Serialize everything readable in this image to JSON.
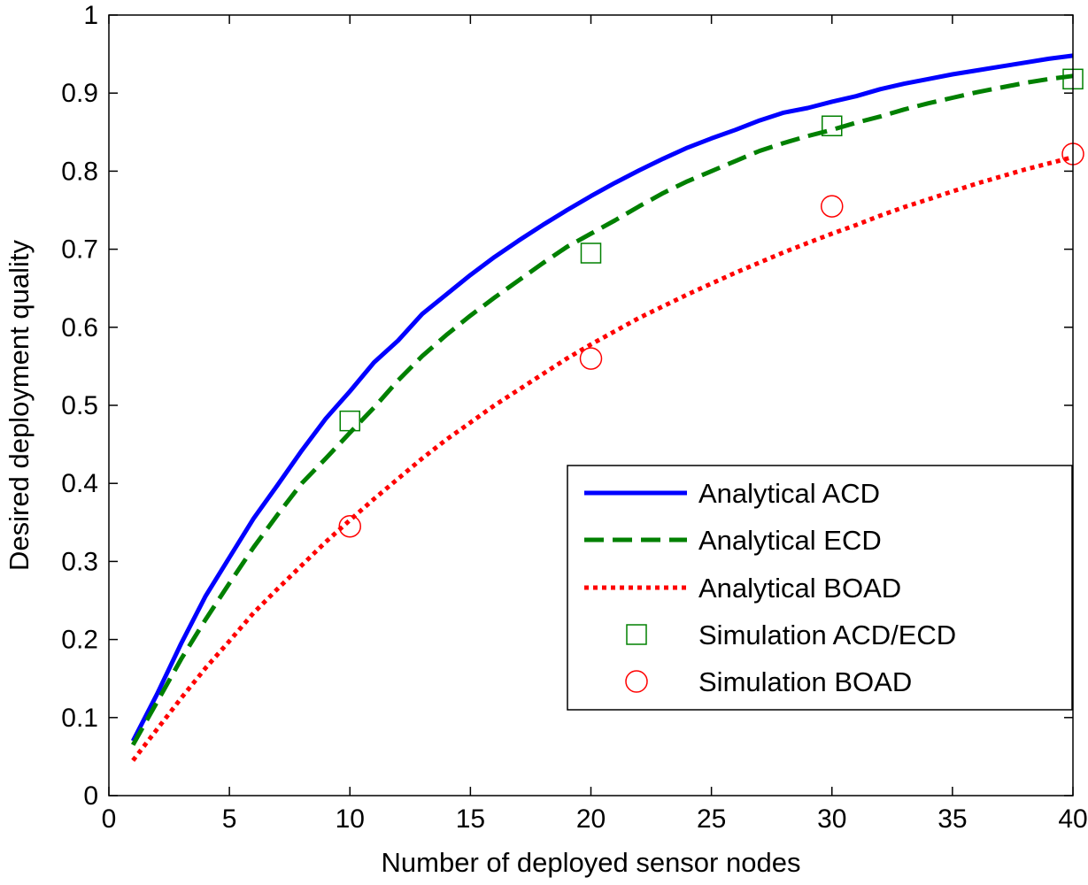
{
  "chart_data": {
    "type": "line",
    "xlabel": "Number of deployed sensor nodes",
    "ylabel": "Desired deployment quality",
    "xlim": [
      0,
      40
    ],
    "ylim": [
      0,
      1
    ],
    "xticks": [
      0,
      5,
      10,
      15,
      20,
      25,
      30,
      35,
      40
    ],
    "yticks": [
      0,
      0.1,
      0.2,
      0.3,
      0.4,
      0.5,
      0.6,
      0.7,
      0.8,
      0.9,
      1
    ],
    "grid": false,
    "legend_position": "lower-right",
    "series": [
      {
        "name": "Analytical ACD",
        "kind": "line",
        "style": "solid",
        "color": "#0000ff",
        "x": [
          1,
          2,
          3,
          4,
          5,
          6,
          7,
          8,
          9,
          10,
          11,
          12,
          13,
          14,
          15,
          16,
          17,
          18,
          19,
          20,
          21,
          22,
          23,
          24,
          25,
          26,
          27,
          28,
          29,
          30,
          31,
          32,
          33,
          34,
          35,
          36,
          37,
          38,
          39,
          40
        ],
        "y": [
          0.07,
          0.13,
          0.195,
          0.255,
          0.305,
          0.355,
          0.398,
          0.442,
          0.483,
          0.518,
          0.555,
          0.583,
          0.617,
          0.642,
          0.667,
          0.69,
          0.711,
          0.731,
          0.75,
          0.768,
          0.785,
          0.801,
          0.816,
          0.83,
          0.842,
          0.853,
          0.865,
          0.875,
          0.881,
          0.889,
          0.896,
          0.905,
          0.912,
          0.918,
          0.924,
          0.929,
          0.934,
          0.939,
          0.944,
          0.948
        ]
      },
      {
        "name": "Analytical ECD",
        "kind": "line",
        "style": "dashed",
        "color": "#008000",
        "x": [
          1,
          2,
          3,
          4,
          5,
          6,
          7,
          8,
          9,
          10,
          11,
          12,
          13,
          14,
          15,
          16,
          17,
          18,
          19,
          20,
          21,
          22,
          23,
          24,
          25,
          26,
          27,
          28,
          29,
          30,
          31,
          32,
          33,
          34,
          35,
          36,
          37,
          38,
          39,
          40
        ],
        "y": [
          0.065,
          0.12,
          0.175,
          0.225,
          0.272,
          0.318,
          0.36,
          0.4,
          0.432,
          0.465,
          0.497,
          0.532,
          0.563,
          0.59,
          0.615,
          0.638,
          0.66,
          0.682,
          0.703,
          0.72,
          0.737,
          0.755,
          0.772,
          0.787,
          0.8,
          0.813,
          0.826,
          0.836,
          0.845,
          0.853,
          0.862,
          0.87,
          0.879,
          0.887,
          0.894,
          0.901,
          0.907,
          0.913,
          0.918,
          0.922
        ]
      },
      {
        "name": "Analytical BOAD",
        "kind": "line",
        "style": "dotted",
        "color": "#ff0000",
        "x": [
          1,
          2,
          3,
          4,
          5,
          6,
          7,
          8,
          9,
          10,
          11,
          12,
          13,
          14,
          15,
          16,
          17,
          18,
          19,
          20,
          21,
          22,
          23,
          24,
          25,
          26,
          27,
          28,
          29,
          30,
          31,
          32,
          33,
          34,
          35,
          36,
          37,
          38,
          39,
          40
        ],
        "y": [
          0.045,
          0.085,
          0.125,
          0.163,
          0.198,
          0.234,
          0.265,
          0.295,
          0.325,
          0.353,
          0.38,
          0.406,
          0.432,
          0.456,
          0.478,
          0.5,
          0.52,
          0.54,
          0.56,
          0.578,
          0.595,
          0.612,
          0.627,
          0.642,
          0.656,
          0.67,
          0.683,
          0.696,
          0.708,
          0.72,
          0.731,
          0.743,
          0.754,
          0.764,
          0.774,
          0.784,
          0.793,
          0.802,
          0.81,
          0.818
        ]
      },
      {
        "name": "Simulation ACD/ECD",
        "kind": "marker",
        "marker": "square",
        "color": "#008000",
        "x": [
          10,
          20,
          30,
          40
        ],
        "y": [
          0.48,
          0.695,
          0.858,
          0.918
        ]
      },
      {
        "name": "Simulation BOAD",
        "kind": "marker",
        "marker": "circle",
        "color": "#ff0000",
        "x": [
          10,
          20,
          30,
          40
        ],
        "y": [
          0.345,
          0.56,
          0.755,
          0.822
        ]
      }
    ]
  }
}
